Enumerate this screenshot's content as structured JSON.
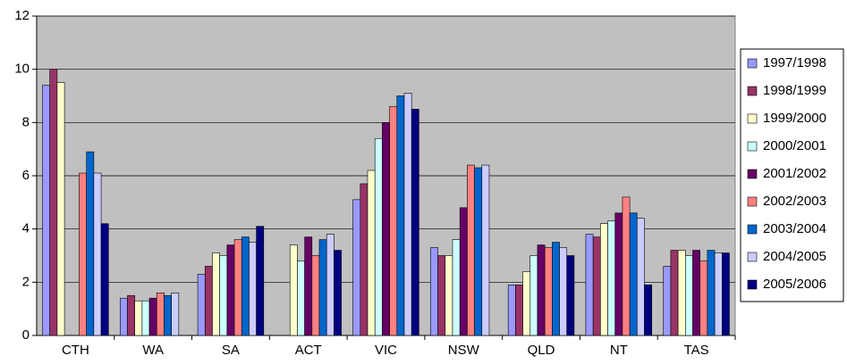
{
  "chart_data": {
    "type": "bar",
    "categories": [
      "CTH",
      "WA",
      "SA",
      "ACT",
      "VIC",
      "NSW",
      "QLD",
      "NT",
      "TAS"
    ],
    "series": [
      {
        "name": "1997/1998",
        "color": "#9999ff",
        "values": [
          9.4,
          1.4,
          2.3,
          null,
          5.1,
          3.3,
          1.9,
          3.8,
          2.6
        ]
      },
      {
        "name": "1998/1999",
        "color": "#993366",
        "values": [
          10,
          1.5,
          2.6,
          null,
          5.7,
          3.0,
          1.9,
          3.7,
          3.2
        ]
      },
      {
        "name": "1999/2000",
        "color": "#ffffcc",
        "values": [
          9.5,
          1.3,
          3.1,
          3.4,
          6.2,
          3.0,
          2.4,
          4.2,
          3.2
        ]
      },
      {
        "name": "2000/2001",
        "color": "#ccffff",
        "values": [
          null,
          1.3,
          3.0,
          2.8,
          7.4,
          3.6,
          3.0,
          4.3,
          3.0
        ]
      },
      {
        "name": "2001/2002",
        "color": "#660066",
        "values": [
          null,
          1.4,
          3.4,
          3.7,
          8.0,
          4.8,
          3.4,
          4.6,
          3.2
        ]
      },
      {
        "name": "2002/2003",
        "color": "#ff8080",
        "values": [
          6.1,
          1.6,
          3.6,
          3.0,
          8.6,
          6.4,
          3.3,
          5.2,
          2.8
        ]
      },
      {
        "name": "2003/2004",
        "color": "#0066cc",
        "values": [
          6.9,
          1.5,
          3.7,
          3.6,
          9.0,
          6.3,
          3.5,
          4.6,
          3.2
        ]
      },
      {
        "name": "2004/2005",
        "color": "#ccccff",
        "values": [
          6.1,
          1.6,
          3.5,
          3.8,
          9.1,
          6.4,
          3.3,
          4.4,
          3.1
        ]
      },
      {
        "name": "2005/2006",
        "color": "#000080",
        "values": [
          4.2,
          null,
          4.1,
          3.2,
          8.5,
          null,
          3.0,
          1.9,
          3.1
        ]
      }
    ],
    "ylim": [
      0,
      12
    ],
    "yticks": [
      0,
      2,
      4,
      6,
      8,
      10,
      12
    ],
    "grid": true,
    "legend": "right"
  }
}
